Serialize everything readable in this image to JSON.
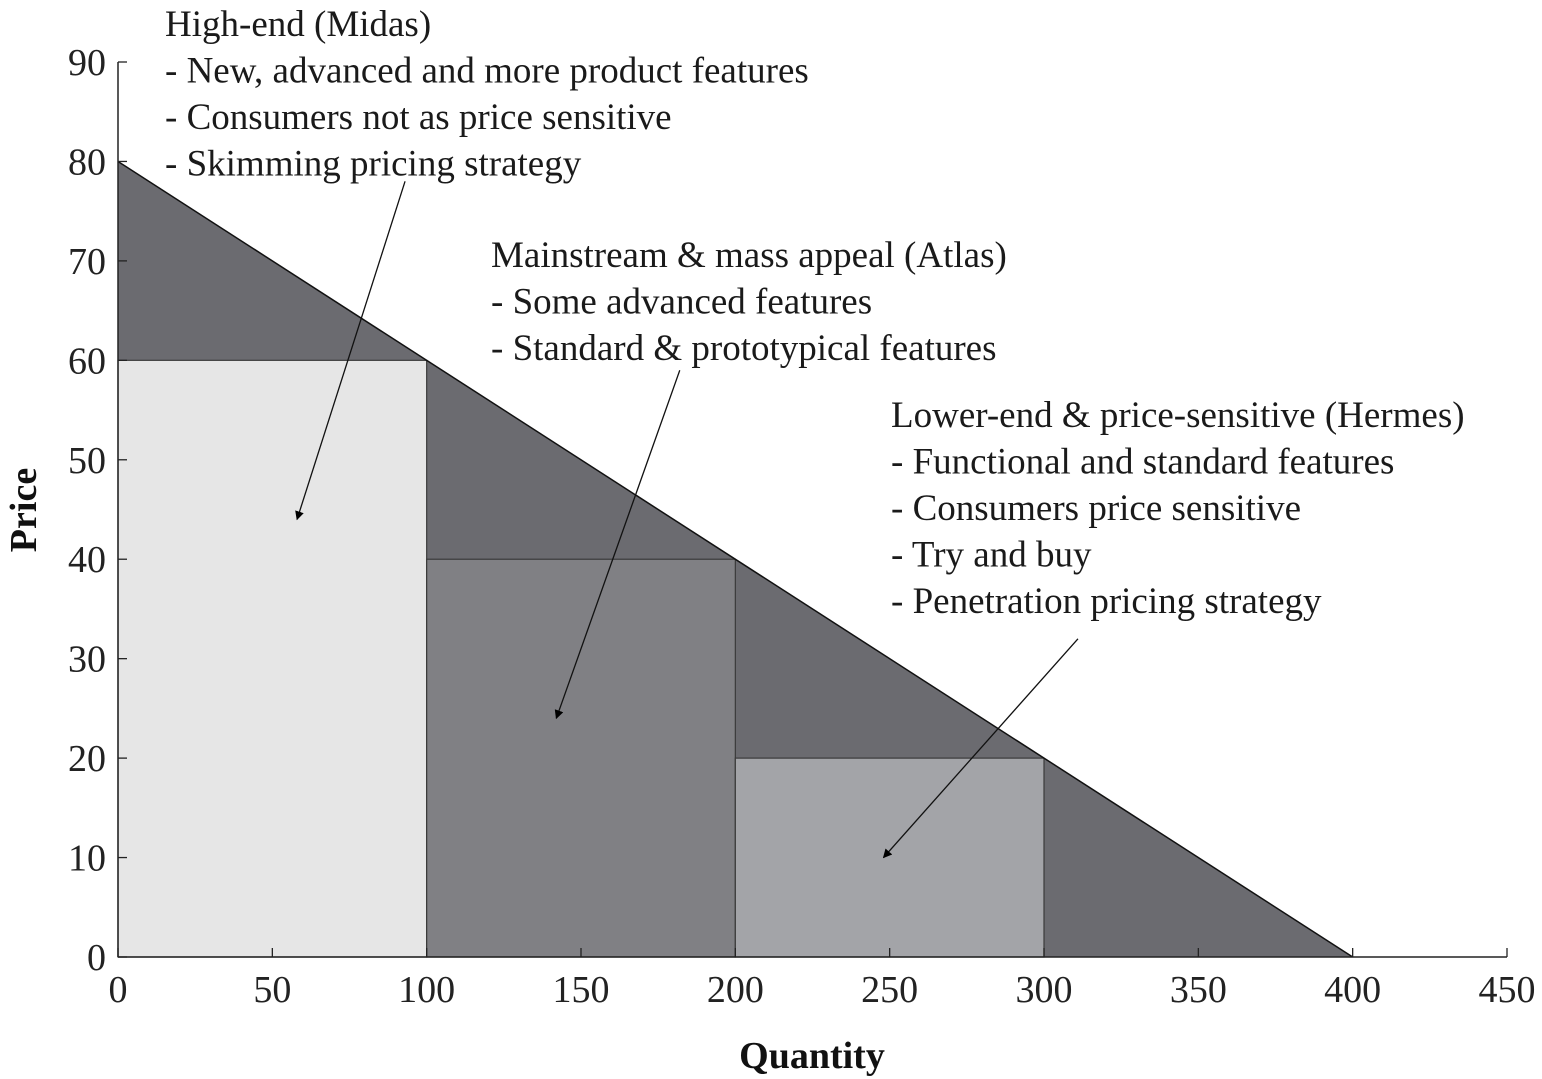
{
  "chart_data": {
    "type": "area",
    "xlabel": "Quantity",
    "ylabel": "Price",
    "xlim": [
      0,
      450
    ],
    "ylim": [
      0,
      90
    ],
    "x_ticks": [
      0,
      50,
      100,
      150,
      200,
      250,
      300,
      350,
      400,
      450
    ],
    "y_ticks": [
      0,
      10,
      20,
      30,
      40,
      50,
      60,
      70,
      80,
      90
    ],
    "grid": false,
    "demand_curve": {
      "x": [
        0,
        400
      ],
      "y": [
        80,
        0
      ]
    },
    "rectangles": [
      {
        "x0": 0,
        "x1": 100,
        "y": 60,
        "color": "#e6e6e6"
      },
      {
        "x0": 100,
        "x1": 200,
        "y": 40,
        "color": "#808084"
      },
      {
        "x0": 200,
        "x1": 300,
        "y": 20,
        "color": "#a3a4a8"
      }
    ],
    "surplus_color": "#6b6b70",
    "annotations": [
      {
        "lines": [
          "High-end (Midas)",
          "- New, advanced and more product features",
          "- Consumers not as price sensitive",
          "- Skimming pricing strategy"
        ],
        "arrow_from": [
          93,
          78
        ],
        "arrow_to": [
          58,
          44
        ]
      },
      {
        "lines": [
          "Mainstream & mass appeal (Atlas)",
          "- Some advanced features",
          "- Standard & prototypical features"
        ],
        "arrow_from": [
          182,
          59
        ],
        "arrow_to": [
          142,
          24
        ]
      },
      {
        "lines": [
          "Lower-end & price-sensitive (Hermes)",
          "- Functional and standard features",
          "- Consumers price sensitive",
          "- Try and buy",
          "- Penetration pricing strategy"
        ],
        "arrow_from": [
          311,
          32
        ],
        "arrow_to": [
          248,
          10
        ]
      }
    ]
  }
}
